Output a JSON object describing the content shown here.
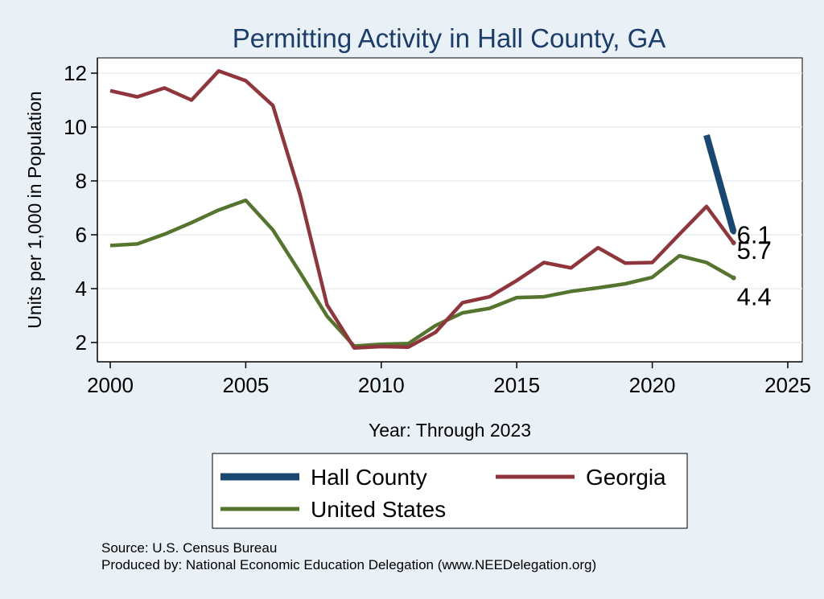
{
  "chart_data": {
    "type": "line",
    "title": "Permitting Activity in Hall County, GA",
    "xlabel": "Year: Through 2023",
    "ylabel": "Units per 1,000 in Population",
    "xlim": [
      2000,
      2025
    ],
    "ylim": [
      1.5,
      12.5
    ],
    "x_ticks": [
      2000,
      2005,
      2010,
      2015,
      2020,
      2025
    ],
    "y_ticks": [
      2,
      4,
      6,
      8,
      10,
      12
    ],
    "grid": true,
    "legend_position": "bottom",
    "series": [
      {
        "name": "Hall County",
        "color": "#1a476f",
        "x": [
          2022,
          2023
        ],
        "values": [
          9.7,
          6.1
        ],
        "end_label": "6.1"
      },
      {
        "name": "Georgia",
        "color": "#90353b",
        "x": [
          2000,
          2001,
          2002,
          2003,
          2004,
          2005,
          2006,
          2007,
          2008,
          2009,
          2010,
          2011,
          2012,
          2013,
          2014,
          2015,
          2016,
          2017,
          2018,
          2019,
          2020,
          2021,
          2022,
          2023
        ],
        "values": [
          11.35,
          11.12,
          11.45,
          11.0,
          12.08,
          11.72,
          10.8,
          7.5,
          3.4,
          1.8,
          1.85,
          1.83,
          2.38,
          3.48,
          3.7,
          4.3,
          4.97,
          4.77,
          5.52,
          4.95,
          4.97,
          6.02,
          7.05,
          5.7
        ],
        "end_label": "5.7"
      },
      {
        "name": "United States",
        "color": "#55752f",
        "x": [
          2000,
          2001,
          2002,
          2003,
          2004,
          2005,
          2006,
          2007,
          2008,
          2009,
          2010,
          2011,
          2012,
          2013,
          2014,
          2015,
          2016,
          2017,
          2018,
          2019,
          2020,
          2021,
          2022,
          2023
        ],
        "values": [
          5.6,
          5.66,
          6.02,
          6.45,
          6.92,
          7.28,
          6.18,
          4.6,
          2.98,
          1.87,
          1.93,
          1.96,
          2.63,
          3.1,
          3.27,
          3.67,
          3.7,
          3.9,
          4.03,
          4.18,
          4.42,
          5.22,
          4.97,
          4.4
        ],
        "end_label": "4.4"
      }
    ]
  },
  "footer": {
    "source": "Source: U.S. Census Bureau",
    "produced_by": "Produced by: National Economic Education Delegation (www.NEEDelegation.org)"
  }
}
